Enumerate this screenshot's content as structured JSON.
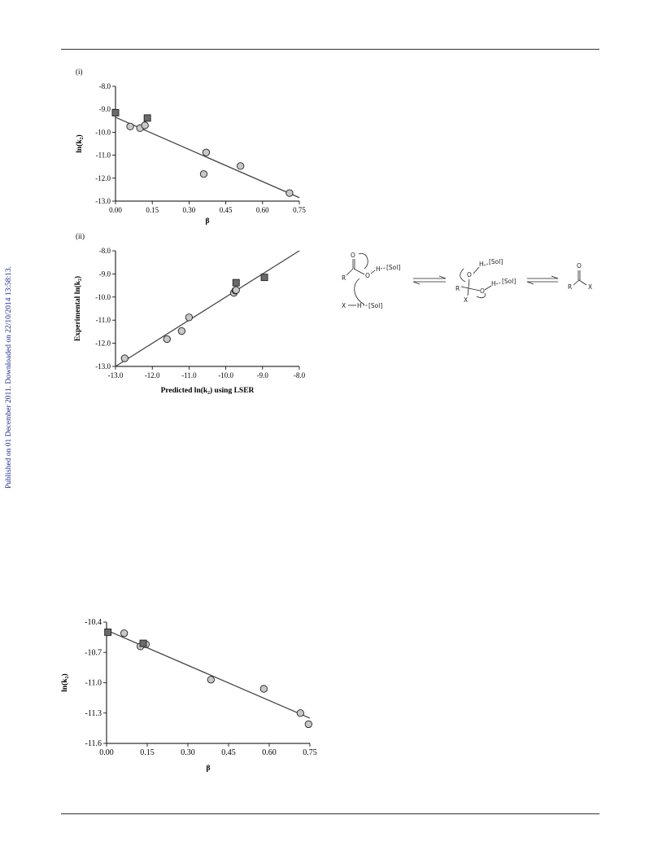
{
  "sidebar_text": "Published on 01 December 2011. Downloaded on 22/10/2014 13:58:13.",
  "colors": {
    "circle_fill": "#c8c8c8",
    "square_fill": "#6a6a6a",
    "line": "#444444",
    "sidebar": "#1a2a8c"
  },
  "chart_data": [
    {
      "type": "scatter",
      "panel_label": "(i)",
      "xlabel": "β",
      "ylabel": "ln(k₂)",
      "xlim": [
        0.0,
        0.75
      ],
      "ylim": [
        -13.0,
        -8.0
      ],
      "x_ticks": [
        "0.00",
        "0.15",
        "0.30",
        "0.45",
        "0.60",
        "0.75"
      ],
      "y_ticks": [
        "-8.0",
        "-9.0",
        "-10.0",
        "-11.0",
        "-12.0",
        "-13.0"
      ],
      "series": [
        {
          "marker": "circle",
          "points": [
            [
              0.06,
              -9.75
            ],
            [
              0.1,
              -9.82
            ],
            [
              0.12,
              -9.7
            ],
            [
              0.37,
              -10.88
            ],
            [
              0.36,
              -11.82
            ],
            [
              0.51,
              -11.47
            ],
            [
              0.71,
              -12.65
            ]
          ]
        },
        {
          "marker": "square",
          "points": [
            [
              0.0,
              -9.15
            ],
            [
              0.13,
              -9.38
            ]
          ]
        }
      ],
      "trendline": [
        [
          0.0,
          -9.35
        ],
        [
          0.75,
          -12.85
        ]
      ]
    },
    {
      "type": "scatter",
      "panel_label": "(ii)",
      "xlabel": "Predicted ln(k₂) using LSER",
      "ylabel": "Experimental ln(k₂)",
      "xlim": [
        -13.0,
        -8.0
      ],
      "ylim": [
        -13.0,
        -8.0
      ],
      "x_ticks": [
        "-13.0",
        "-12.0",
        "-11.0",
        "-10.0",
        "-9.0",
        "-8.0"
      ],
      "y_ticks": [
        "-8.0",
        "-9.0",
        "-10.0",
        "-11.0",
        "-12.0",
        "-13.0"
      ],
      "series": [
        {
          "marker": "circle",
          "points": [
            [
              -12.75,
              -12.65
            ],
            [
              -11.6,
              -11.82
            ],
            [
              -11.2,
              -11.47
            ],
            [
              -11.0,
              -10.88
            ],
            [
              -9.78,
              -9.82
            ],
            [
              -9.74,
              -9.72
            ],
            [
              -9.72,
              -9.7
            ]
          ]
        },
        {
          "marker": "square",
          "points": [
            [
              -8.95,
              -9.15
            ],
            [
              -9.72,
              -9.38
            ]
          ]
        }
      ],
      "trendline": [
        [
          -13.0,
          -13.0
        ],
        [
          -8.0,
          -8.0
        ]
      ]
    },
    {
      "type": "scatter",
      "panel_label": "",
      "xlabel": "β",
      "ylabel": "ln(k₂)",
      "xlim": [
        0.0,
        0.75
      ],
      "ylim": [
        -11.6,
        -10.4
      ],
      "x_ticks": [
        "0.00",
        "0.15",
        "0.30",
        "0.45",
        "0.60",
        "0.75"
      ],
      "y_ticks": [
        "-10.4",
        "-10.7",
        "-11.0",
        "-11.3",
        "-11.6"
      ],
      "series": [
        {
          "marker": "circle",
          "points": [
            [
              0.065,
              -10.51
            ],
            [
              0.125,
              -10.64
            ],
            [
              0.145,
              -10.62
            ],
            [
              0.385,
              -10.97
            ],
            [
              0.58,
              -11.06
            ],
            [
              0.715,
              -11.3
            ],
            [
              0.745,
              -11.41
            ]
          ]
        },
        {
          "marker": "square",
          "points": [
            [
              0.005,
              -10.5
            ],
            [
              0.135,
              -10.61
            ]
          ]
        }
      ],
      "trendline": [
        [
          0.0,
          -10.48
        ],
        [
          0.75,
          -11.35
        ]
      ]
    }
  ],
  "scheme": {
    "labels": {
      "o_top": "O",
      "r": "R",
      "o_acid": "O",
      "h": "H",
      "sol": "[Sol]",
      "xh_x": "X",
      "xh_h": "H",
      "o_int_top": "O",
      "h_int_top": "H",
      "sol_int_top": "[Sol]",
      "r_int": "R",
      "x_int": "X",
      "o_int_right": "O",
      "h_int_right": "H",
      "sol_int_right": "[Sol]",
      "o_prod": "O",
      "r_prod": "R",
      "x_prod": "X"
    }
  }
}
